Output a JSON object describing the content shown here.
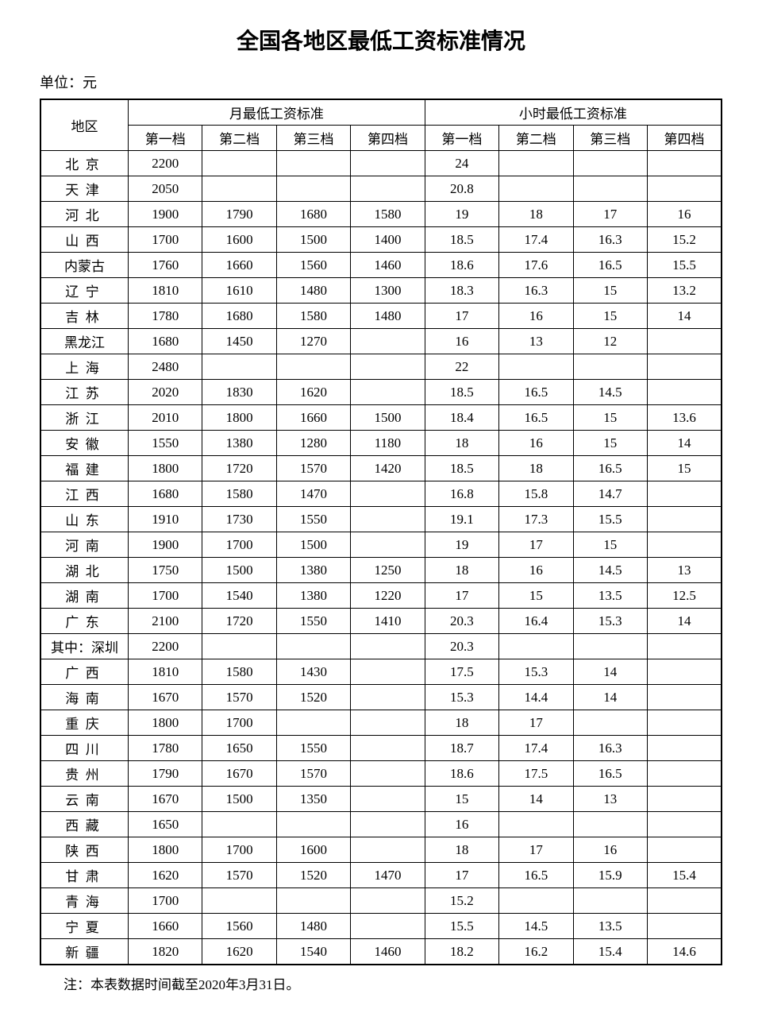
{
  "title": "全国各地区最低工资标准情况",
  "unit": "单位：元",
  "note": "注：本表数据时间截至2020年3月31日。",
  "headers": {
    "region": "地区",
    "monthly": "月最低工资标准",
    "hourly": "小时最低工资标准",
    "tiers": [
      "第一档",
      "第二档",
      "第三档",
      "第四档"
    ]
  },
  "rows": [
    {
      "region": "北京",
      "spacing": true,
      "m": [
        "2200",
        "",
        "",
        ""
      ],
      "h": [
        "24",
        "",
        "",
        ""
      ]
    },
    {
      "region": "天津",
      "spacing": true,
      "m": [
        "2050",
        "",
        "",
        ""
      ],
      "h": [
        "20.8",
        "",
        "",
        ""
      ]
    },
    {
      "region": "河北",
      "spacing": true,
      "m": [
        "1900",
        "1790",
        "1680",
        "1580"
      ],
      "h": [
        "19",
        "18",
        "17",
        "16"
      ]
    },
    {
      "region": "山西",
      "spacing": true,
      "m": [
        "1700",
        "1600",
        "1500",
        "1400"
      ],
      "h": [
        "18.5",
        "17.4",
        "16.3",
        "15.2"
      ]
    },
    {
      "region": "内蒙古",
      "spacing": false,
      "m": [
        "1760",
        "1660",
        "1560",
        "1460"
      ],
      "h": [
        "18.6",
        "17.6",
        "16.5",
        "15.5"
      ]
    },
    {
      "region": "辽宁",
      "spacing": true,
      "m": [
        "1810",
        "1610",
        "1480",
        "1300"
      ],
      "h": [
        "18.3",
        "16.3",
        "15",
        "13.2"
      ]
    },
    {
      "region": "吉林",
      "spacing": true,
      "m": [
        "1780",
        "1680",
        "1580",
        "1480"
      ],
      "h": [
        "17",
        "16",
        "15",
        "14"
      ]
    },
    {
      "region": "黑龙江",
      "spacing": false,
      "m": [
        "1680",
        "1450",
        "1270",
        ""
      ],
      "h": [
        "16",
        "13",
        "12",
        ""
      ]
    },
    {
      "region": "上海",
      "spacing": true,
      "m": [
        "2480",
        "",
        "",
        ""
      ],
      "h": [
        "22",
        "",
        "",
        ""
      ]
    },
    {
      "region": "江苏",
      "spacing": true,
      "m": [
        "2020",
        "1830",
        "1620",
        ""
      ],
      "h": [
        "18.5",
        "16.5",
        "14.5",
        ""
      ]
    },
    {
      "region": "浙江",
      "spacing": true,
      "m": [
        "2010",
        "1800",
        "1660",
        "1500"
      ],
      "h": [
        "18.4",
        "16.5",
        "15",
        "13.6"
      ]
    },
    {
      "region": "安徽",
      "spacing": true,
      "m": [
        "1550",
        "1380",
        "1280",
        "1180"
      ],
      "h": [
        "18",
        "16",
        "15",
        "14"
      ]
    },
    {
      "region": "福建",
      "spacing": true,
      "m": [
        "1800",
        "1720",
        "1570",
        "1420"
      ],
      "h": [
        "18.5",
        "18",
        "16.5",
        "15"
      ]
    },
    {
      "region": "江西",
      "spacing": true,
      "m": [
        "1680",
        "1580",
        "1470",
        ""
      ],
      "h": [
        "16.8",
        "15.8",
        "14.7",
        ""
      ]
    },
    {
      "region": "山东",
      "spacing": true,
      "m": [
        "1910",
        "1730",
        "1550",
        ""
      ],
      "h": [
        "19.1",
        "17.3",
        "15.5",
        ""
      ]
    },
    {
      "region": "河南",
      "spacing": true,
      "m": [
        "1900",
        "1700",
        "1500",
        ""
      ],
      "h": [
        "19",
        "17",
        "15",
        ""
      ]
    },
    {
      "region": "湖北",
      "spacing": true,
      "m": [
        "1750",
        "1500",
        "1380",
        "1250"
      ],
      "h": [
        "18",
        "16",
        "14.5",
        "13"
      ]
    },
    {
      "region": "湖南",
      "spacing": true,
      "m": [
        "1700",
        "1540",
        "1380",
        "1220"
      ],
      "h": [
        "17",
        "15",
        "13.5",
        "12.5"
      ]
    },
    {
      "region": "广东",
      "spacing": true,
      "m": [
        "2100",
        "1720",
        "1550",
        "1410"
      ],
      "h": [
        "20.3",
        "16.4",
        "15.3",
        "14"
      ]
    },
    {
      "region": "其中：深圳",
      "spacing": false,
      "m": [
        "2200",
        "",
        "",
        ""
      ],
      "h": [
        "20.3",
        "",
        "",
        ""
      ]
    },
    {
      "region": "广西",
      "spacing": true,
      "m": [
        "1810",
        "1580",
        "1430",
        ""
      ],
      "h": [
        "17.5",
        "15.3",
        "14",
        ""
      ]
    },
    {
      "region": "海南",
      "spacing": true,
      "m": [
        "1670",
        "1570",
        "1520",
        ""
      ],
      "h": [
        "15.3",
        "14.4",
        "14",
        ""
      ]
    },
    {
      "region": "重庆",
      "spacing": true,
      "m": [
        "1800",
        "1700",
        "",
        ""
      ],
      "h": [
        "18",
        "17",
        "",
        ""
      ]
    },
    {
      "region": "四川",
      "spacing": true,
      "m": [
        "1780",
        "1650",
        "1550",
        ""
      ],
      "h": [
        "18.7",
        "17.4",
        "16.3",
        ""
      ]
    },
    {
      "region": "贵州",
      "spacing": true,
      "m": [
        "1790",
        "1670",
        "1570",
        ""
      ],
      "h": [
        "18.6",
        "17.5",
        "16.5",
        ""
      ]
    },
    {
      "region": "云南",
      "spacing": true,
      "m": [
        "1670",
        "1500",
        "1350",
        ""
      ],
      "h": [
        "15",
        "14",
        "13",
        ""
      ]
    },
    {
      "region": "西藏",
      "spacing": true,
      "m": [
        "1650",
        "",
        "",
        ""
      ],
      "h": [
        "16",
        "",
        "",
        ""
      ]
    },
    {
      "region": "陕西",
      "spacing": true,
      "m": [
        "1800",
        "1700",
        "1600",
        ""
      ],
      "h": [
        "18",
        "17",
        "16",
        ""
      ]
    },
    {
      "region": "甘肃",
      "spacing": true,
      "m": [
        "1620",
        "1570",
        "1520",
        "1470"
      ],
      "h": [
        "17",
        "16.5",
        "15.9",
        "15.4"
      ]
    },
    {
      "region": "青海",
      "spacing": true,
      "m": [
        "1700",
        "",
        "",
        ""
      ],
      "h": [
        "15.2",
        "",
        "",
        ""
      ]
    },
    {
      "region": "宁夏",
      "spacing": true,
      "m": [
        "1660",
        "1560",
        "1480",
        ""
      ],
      "h": [
        "15.5",
        "14.5",
        "13.5",
        ""
      ]
    },
    {
      "region": "新疆",
      "spacing": true,
      "m": [
        "1820",
        "1620",
        "1540",
        "1460"
      ],
      "h": [
        "18.2",
        "16.2",
        "15.4",
        "14.6"
      ]
    }
  ]
}
